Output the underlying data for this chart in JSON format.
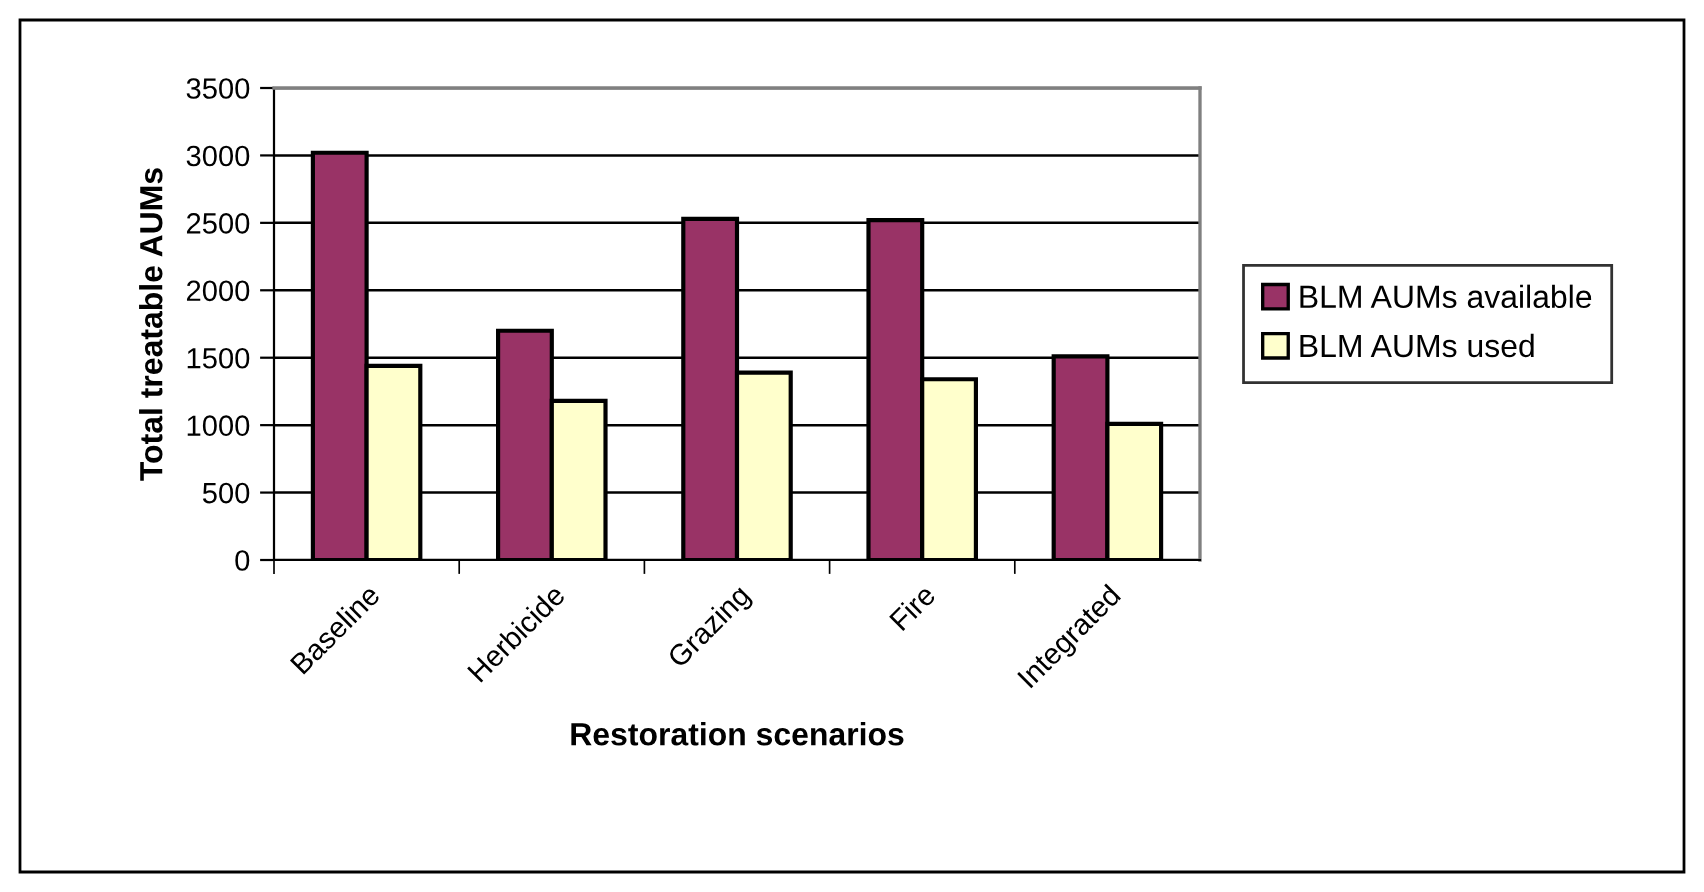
{
  "chart_data": {
    "type": "bar",
    "xlabel": "Restoration scenarios",
    "ylabel": "Total treatable AUMs",
    "categories": [
      "Baseline",
      "Herbicide",
      "Grazing",
      "Fire",
      "Integrated"
    ],
    "series": [
      {
        "name": "BLM AUMs available",
        "color": "#993366",
        "values": [
          3020,
          1700,
          2530,
          2520,
          1510
        ]
      },
      {
        "name": "BLM AUMs used",
        "color": "#ffffcc",
        "values": [
          1440,
          1180,
          1390,
          1340,
          1010
        ]
      }
    ],
    "ylim": [
      0,
      3500
    ],
    "yticks": [
      0,
      500,
      1000,
      1500,
      2000,
      2500,
      3000,
      3500
    ],
    "grid": "y",
    "legend": "right"
  }
}
